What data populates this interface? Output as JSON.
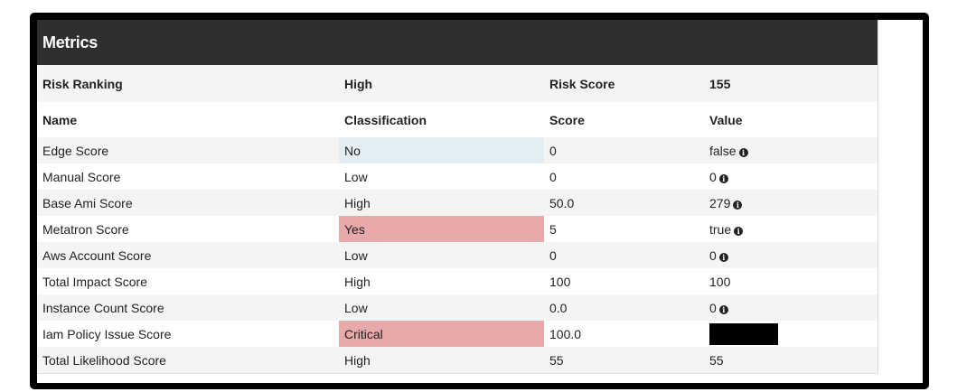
{
  "panel": {
    "title": "Metrics"
  },
  "summary": {
    "risk_ranking_label": "Risk Ranking",
    "risk_ranking_value": "High",
    "risk_score_label": "Risk Score",
    "risk_score_value": "155"
  },
  "columns": {
    "name": "Name",
    "classification": "Classification",
    "score": "Score",
    "value": "Value"
  },
  "rows": [
    {
      "name": "Edge Score",
      "classification": "No",
      "score": "0",
      "value": "false",
      "info_icon": true,
      "highlight": "blue"
    },
    {
      "name": "Manual Score",
      "classification": "Low",
      "score": "0",
      "value": "0",
      "info_icon": true
    },
    {
      "name": "Base Ami Score",
      "classification": "High",
      "score": "50.0",
      "value": "279",
      "info_icon": true
    },
    {
      "name": "Metatron Score",
      "classification": "Yes",
      "score": "5",
      "value": "true",
      "info_icon": true,
      "highlight": "red"
    },
    {
      "name": "Aws Account Score",
      "classification": "Low",
      "score": "0",
      "value": "0",
      "info_icon": true
    },
    {
      "name": "Total Impact Score",
      "classification": "High",
      "score": "100",
      "value": "100",
      "info_icon": false
    },
    {
      "name": "Instance Count Score",
      "classification": "Low",
      "score": "0.0",
      "value": "0",
      "info_icon": true
    },
    {
      "name": "Iam Policy Issue Score",
      "classification": "Critical",
      "score": "100.0",
      "value": "",
      "redacted": true,
      "highlight": "red"
    },
    {
      "name": "Total Likelihood Score",
      "classification": "High",
      "score": "55",
      "value": "55",
      "info_icon": false
    }
  ],
  "colors": {
    "header_bg": "#2e2e2e",
    "highlight_blue": "#e2eef1",
    "highlight_red": "#e8a9ab",
    "stripe": "#f4f4f4"
  },
  "icons": {
    "info": "info-circle-icon"
  }
}
